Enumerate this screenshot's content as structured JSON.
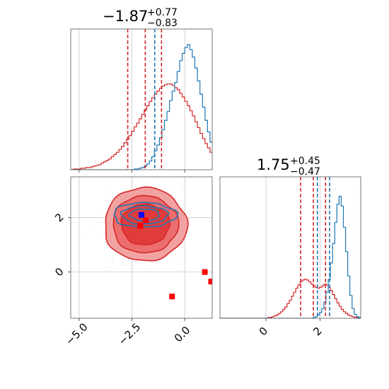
{
  "chart_data": {
    "type": "corner",
    "colors": {
      "blue": "#1f77b4",
      "red": "#d62728",
      "red_fill_outer": "#f3a2a2",
      "red_fill_mid": "#ec6e6e",
      "red_fill_inner": "#e03c3c",
      "grid": "#c8c8c8",
      "marker_blue": "#0000ff",
      "marker_red": "#ff0000"
    },
    "params": [
      {
        "title": {
          "value": "−1.87",
          "plus": "+0.77",
          "minus": "−0.83"
        },
        "range": [
          -5.4,
          1.3
        ],
        "ticks": [
          {
            "v": -5.0,
            "label": "−5.0"
          },
          {
            "v": -2.5,
            "label": "−2.5"
          },
          {
            "v": 0.0,
            "label": "0.0"
          }
        ],
        "quantiles_blue": [
          -1.42
        ],
        "quantiles_red": [
          -2.7,
          -1.87,
          -1.1
        ]
      },
      {
        "title": {
          "value": "1.75",
          "plus": "+0.45",
          "minus": "−0.47"
        },
        "range": [
          -1.7,
          3.5
        ],
        "ticks": [
          {
            "v": 0,
            "label": "0"
          },
          {
            "v": 2,
            "label": "2"
          }
        ],
        "quantiles_blue": [
          1.9,
          2.35
        ],
        "quantiles_red": [
          1.28,
          1.75,
          2.2
        ]
      }
    ],
    "hist_1d": [
      {
        "bin_edges_start": -5.4,
        "bin_width": 0.12,
        "blue": [
          0,
          0,
          0,
          0,
          0,
          0,
          0,
          0,
          0,
          0,
          0,
          0,
          0,
          0,
          0,
          0,
          0,
          0,
          0,
          0,
          0,
          0,
          0,
          0,
          0,
          1,
          1,
          2,
          3,
          5,
          8,
          12,
          18,
          26,
          34,
          44,
          55,
          68,
          80,
          95,
          108,
          120,
          135,
          150,
          160,
          168,
          172,
          165,
          155,
          140,
          122,
          104,
          86,
          68,
          52,
          38,
          27,
          18,
          12,
          8,
          5,
          3,
          2,
          1,
          1,
          0
        ],
        "red": [
          0,
          1,
          1,
          1,
          2,
          2,
          3,
          3,
          4,
          5,
          6,
          7,
          9,
          11,
          13,
          15,
          18,
          21,
          24,
          28,
          32,
          37,
          42,
          47,
          53,
          59,
          64,
          70,
          76,
          82,
          88,
          94,
          99,
          104,
          108,
          112,
          115,
          117,
          118,
          118,
          116,
          113,
          110,
          105,
          100,
          94,
          88,
          81,
          74,
          66,
          58,
          50,
          43,
          36,
          30,
          24,
          19,
          15,
          12,
          9,
          7,
          5,
          4,
          3,
          2,
          1
        ],
        "ymax": 178
      },
      {
        "bin_edges_start": -1.7,
        "bin_width": 0.08,
        "blue": [
          0,
          0,
          0,
          0,
          0,
          0,
          0,
          0,
          0,
          0,
          0,
          0,
          0,
          0,
          0,
          0,
          0,
          0,
          0,
          0,
          0,
          0,
          0,
          0,
          0,
          0,
          0,
          0,
          0,
          0,
          0,
          0,
          0,
          0,
          0,
          0,
          0,
          0,
          0,
          0,
          0,
          0,
          0,
          1,
          2,
          4,
          7,
          12,
          20,
          32,
          48,
          68,
          92,
          118,
          140,
          150,
          138,
          112,
          82,
          52,
          28,
          12,
          5,
          2,
          1,
          0,
          0
        ],
        "red": [
          0,
          0,
          0,
          0,
          0,
          0,
          0,
          0,
          0,
          0,
          0,
          0,
          0,
          0,
          0,
          0,
          0,
          0,
          0,
          0,
          0,
          0,
          1,
          1,
          2,
          3,
          4,
          6,
          8,
          11,
          14,
          18,
          22,
          27,
          32,
          37,
          41,
          45,
          47,
          48,
          47,
          45,
          42,
          40,
          38,
          37,
          38,
          40,
          42,
          41,
          38,
          34,
          29,
          24,
          19,
          15,
          11,
          8,
          6,
          4,
          3,
          2,
          1,
          1,
          0,
          0,
          0
        ],
        "ymax": 160
      }
    ],
    "joint": {
      "x_range": [
        -5.4,
        1.3
      ],
      "y_range": [
        -1.7,
        3.5
      ],
      "blue_center": [
        -1.9,
        2.1
      ],
      "red_center": [
        -1.87,
        1.75
      ],
      "blue_markers": [
        [
          -2.05,
          2.1
        ]
      ],
      "red_markers": [
        [
          -1.85,
          1.9
        ],
        [
          -2.1,
          1.7
        ],
        [
          -0.6,
          -0.9
        ],
        [
          0.95,
          0.0
        ],
        [
          1.25,
          -0.35
        ]
      ],
      "red_contour_levels": [
        {
          "rx": 1.95,
          "ry": 1.35
        },
        {
          "rx": 1.55,
          "ry": 1.05
        },
        {
          "rx": 1.15,
          "ry": 0.75
        }
      ],
      "blue_contour_levels": [
        {
          "rx": 1.5,
          "ry": 0.45
        },
        {
          "rx": 1.1,
          "ry": 0.33
        },
        {
          "rx": 0.7,
          "ry": 0.22
        }
      ]
    }
  }
}
